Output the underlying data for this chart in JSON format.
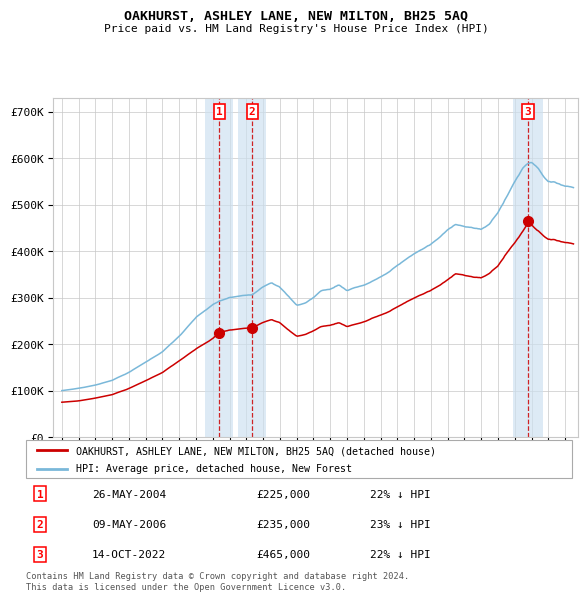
{
  "title": "OAKHURST, ASHLEY LANE, NEW MILTON, BH25 5AQ",
  "subtitle": "Price paid vs. HM Land Registry's House Price Index (HPI)",
  "xlim_start": 1994.5,
  "xlim_end": 2025.8,
  "ylim": [
    0,
    730000
  ],
  "yticks": [
    0,
    100000,
    200000,
    300000,
    400000,
    500000,
    600000,
    700000
  ],
  "ytick_labels": [
    "£0",
    "£100K",
    "£200K",
    "£300K",
    "£400K",
    "£500K",
    "£600K",
    "£700K"
  ],
  "sale_dates": [
    2004.38,
    2006.35,
    2022.79
  ],
  "sale_prices": [
    225000,
    235000,
    465000
  ],
  "sale_labels": [
    "1",
    "2",
    "3"
  ],
  "hpi_color": "#7ab8d9",
  "price_color": "#cc0000",
  "marker_color": "#cc0000",
  "shading_color": "#cce0f0",
  "vline_color": "#cc0000",
  "grid_color": "#c8c8c8",
  "background_color": "#ffffff",
  "legend_entries": [
    "OAKHURST, ASHLEY LANE, NEW MILTON, BH25 5AQ (detached house)",
    "HPI: Average price, detached house, New Forest"
  ],
  "table_rows": [
    [
      "1",
      "26-MAY-2004",
      "£225,000",
      "22% ↓ HPI"
    ],
    [
      "2",
      "09-MAY-2006",
      "£235,000",
      "23% ↓ HPI"
    ],
    [
      "3",
      "14-OCT-2022",
      "£465,000",
      "22% ↓ HPI"
    ]
  ],
  "footer": "Contains HM Land Registry data © Crown copyright and database right 2024.\nThis data is licensed under the Open Government Licence v3.0."
}
